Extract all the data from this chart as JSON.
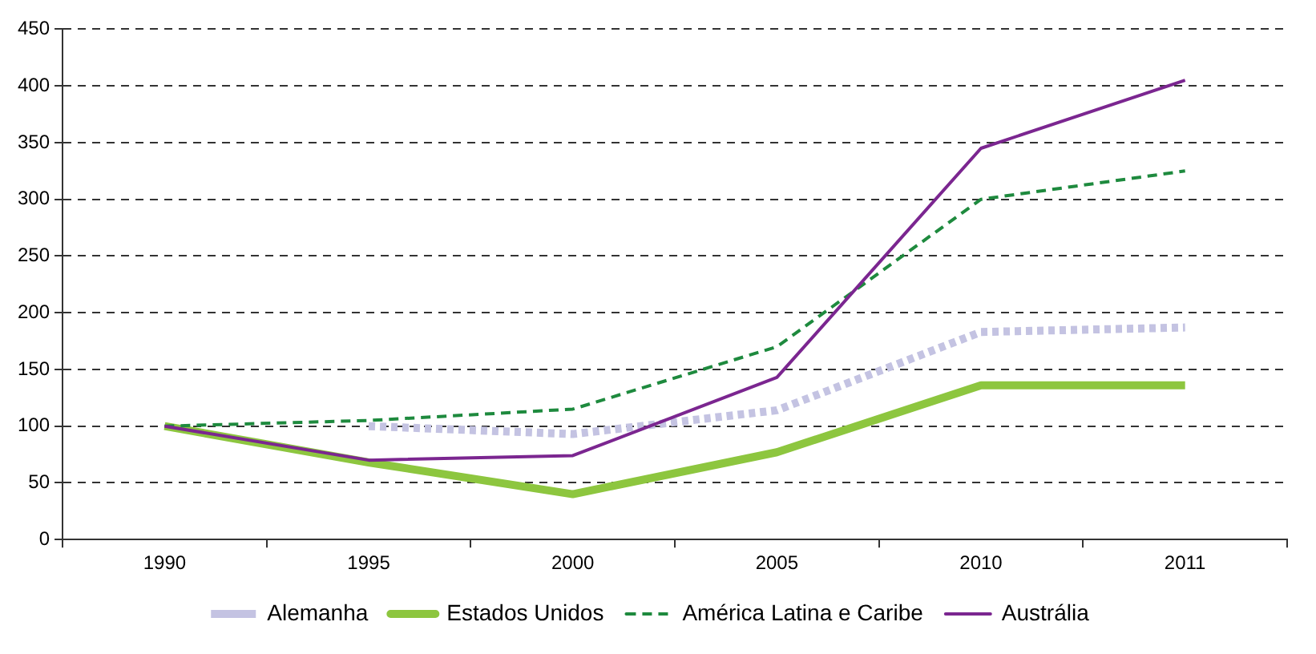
{
  "chart_data": {
    "type": "line",
    "categories": [
      "1990",
      "1995",
      "2000",
      "2005",
      "2010",
      "2011"
    ],
    "series": [
      {
        "name": "Alemanha",
        "color": "#c4c3e2",
        "line_style": "dotted",
        "values": [
          null,
          100,
          93,
          114,
          183,
          187
        ]
      },
      {
        "name": "Estados Unidos",
        "color": "#8dc63f",
        "values": [
          100,
          68,
          40,
          77,
          136,
          136
        ]
      },
      {
        "name": "América Latina e Caribe",
        "color": "#1e8a3e",
        "line_style": "dashed",
        "values": [
          100,
          105,
          115,
          170,
          300,
          325
        ]
      },
      {
        "name": "Austrália",
        "color": "#7b2690",
        "values": [
          100,
          70,
          74,
          143,
          345,
          405
        ]
      }
    ],
    "ylim": [
      0,
      450
    ],
    "yticks": [
      0,
      50,
      100,
      150,
      200,
      250,
      300,
      350,
      400,
      450
    ],
    "grid": "y",
    "legend": "bottom",
    "marker": "none",
    "line_style": "solid"
  }
}
